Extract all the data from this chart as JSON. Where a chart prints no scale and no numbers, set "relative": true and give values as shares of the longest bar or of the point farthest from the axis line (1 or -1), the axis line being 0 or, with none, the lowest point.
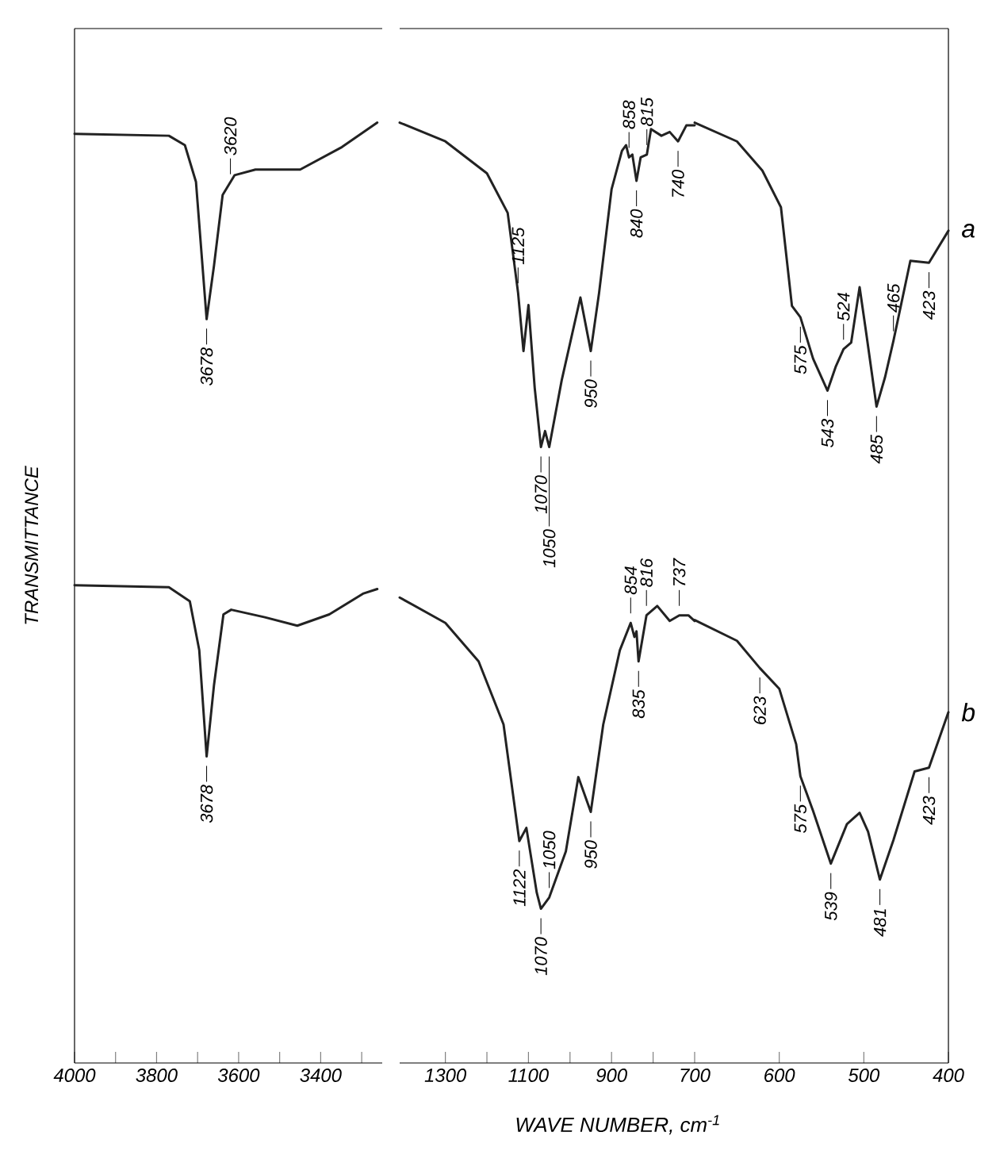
{
  "chart_data": [
    {
      "type": "line",
      "relative": true,
      "ylabel": "TRANSMITTANCE",
      "xlim": [
        4000,
        3250
      ],
      "xticks": [
        4000,
        {
          "value": 3900,
          "label": null
        },
        3800,
        {
          "value": 3700,
          "label": null
        },
        3600,
        {
          "value": 3500,
          "label": null
        },
        3400,
        {
          "value": 3300,
          "label": null
        }
      ],
      "series": [
        {
          "color": "#222222",
          "x": [
            4000,
            3770,
            3731,
            3704,
            3678,
            3660,
            3639,
            3610,
            3559,
            3450,
            3348,
            3262
          ],
          "values": [
            0.988,
            0.986,
            0.976,
            0.937,
            0.791,
            0.848,
            0.923,
            0.944,
            0.95,
            0.95,
            0.974,
            1.0
          ]
        },
        {
          "color": "#222222",
          "x": [
            4000,
            3770,
            3719,
            3696,
            3678,
            3660,
            3637,
            3618,
            3536,
            3457,
            3379,
            3297,
            3262
          ],
          "values": [
            0.508,
            0.506,
            0.491,
            0.439,
            0.326,
            0.402,
            0.477,
            0.482,
            0.474,
            0.465,
            0.477,
            0.499,
            0.504
          ]
        }
      ],
      "annotations": [
        {
          "text": "3678",
          "x": 3678,
          "y": 0.791
        },
        {
          "text": "3620",
          "x": 3620,
          "y": 0.935
        },
        {
          "text": "3678",
          "x": 3678,
          "y": 0.326
        }
      ]
    },
    {
      "type": "line",
      "relative": true,
      "xlabel": "WAVE NUMBER, cm$^{-1}$",
      "xlim": [
        1410,
        700
      ],
      "xticks": [
        1300,
        {
          "value": 1200,
          "label": null
        },
        1100,
        {
          "value": 1000,
          "label": null
        },
        900,
        {
          "value": 800,
          "label": null
        },
        700
      ],
      "series": [
        {
          "color": "#222222",
          "x": [
            1410,
            1300,
            1200,
            1150,
            1125,
            1112,
            1100,
            1085,
            1070,
            1060,
            1050,
            1020,
            975,
            950,
            930,
            900,
            875,
            865,
            858,
            850,
            840,
            830,
            815,
            805,
            780,
            760,
            740,
            720,
            700
          ],
          "values": [
            1.0,
            0.98,
            0.946,
            0.904,
            0.819,
            0.757,
            0.806,
            0.718,
            0.655,
            0.672,
            0.655,
            0.726,
            0.814,
            0.757,
            0.819,
            0.929,
            0.97,
            0.976,
            0.963,
            0.966,
            0.938,
            0.963,
            0.966,
            0.993,
            0.986,
            0.99,
            0.98,
            0.997,
            0.997
          ]
        },
        {
          "color": "#222222",
          "x": [
            1410,
            1300,
            1220,
            1160,
            1122,
            1105,
            1080,
            1070,
            1050,
            1010,
            980,
            950,
            920,
            880,
            854,
            845,
            840,
            835,
            816,
            790,
            760,
            737,
            715,
            700
          ],
          "values": [
            0.495,
            0.468,
            0.427,
            0.36,
            0.236,
            0.25,
            0.181,
            0.164,
            0.176,
            0.225,
            0.304,
            0.267,
            0.36,
            0.439,
            0.468,
            0.453,
            0.459,
            0.427,
            0.476,
            0.486,
            0.47,
            0.476,
            0.476,
            0.47
          ]
        }
      ],
      "annotations": [
        {
          "text": "1125",
          "x": 1125,
          "y": 0.819
        },
        {
          "text": "1070",
          "x": 1070,
          "y": 0.655
        },
        {
          "text": "1050",
          "x": 1050,
          "y": 0.655
        },
        {
          "text": "950",
          "x": 950,
          "y": 0.757
        },
        {
          "text": "858",
          "x": 858,
          "y": 0.963
        },
        {
          "text": "840",
          "x": 840,
          "y": 0.938
        },
        {
          "text": "815",
          "x": 815,
          "y": 0.966
        },
        {
          "text": "740",
          "x": 740,
          "y": 0.98
        },
        {
          "text": "1122",
          "x": 1122,
          "y": 0.236
        },
        {
          "text": "1070",
          "x": 1070,
          "y": 0.164
        },
        {
          "text": "1050",
          "x": 1050,
          "y": 0.176
        },
        {
          "text": "950",
          "x": 950,
          "y": 0.267
        },
        {
          "text": "854",
          "x": 854,
          "y": 0.468
        },
        {
          "text": "835",
          "x": 835,
          "y": 0.427
        },
        {
          "text": "816",
          "x": 816,
          "y": 0.476
        },
        {
          "text": "737",
          "x": 737,
          "y": 0.476
        }
      ]
    },
    {
      "type": "line",
      "relative": true,
      "xlim": [
        700,
        400
      ],
      "xticks": [
        600,
        500,
        400
      ],
      "series": [
        {
          "name": "a",
          "color": "#222222",
          "x": [
            700,
            650,
            620,
            598,
            585,
            575,
            560,
            543,
            533,
            524,
            515,
            505,
            497,
            485,
            475,
            465,
            445,
            423,
            400
          ],
          "values": [
            1.0,
            0.98,
            0.949,
            0.91,
            0.805,
            0.793,
            0.749,
            0.715,
            0.741,
            0.759,
            0.766,
            0.825,
            0.775,
            0.698,
            0.729,
            0.768,
            0.853,
            0.851,
            0.885
          ]
        },
        {
          "name": "b",
          "color": "#222222",
          "x": [
            700,
            650,
            623,
            600,
            580,
            575,
            560,
            539,
            520,
            505,
            495,
            481,
            465,
            440,
            423,
            400
          ],
          "values": [
            0.471,
            0.449,
            0.42,
            0.398,
            0.339,
            0.305,
            0.268,
            0.212,
            0.254,
            0.266,
            0.246,
            0.195,
            0.237,
            0.31,
            0.314,
            0.373
          ]
        }
      ],
      "annotations": [
        {
          "text": "575",
          "x": 575,
          "y": 0.793
        },
        {
          "text": "543",
          "x": 543,
          "y": 0.715
        },
        {
          "text": "524",
          "x": 524,
          "y": 0.759
        },
        {
          "text": "485",
          "x": 485,
          "y": 0.698
        },
        {
          "text": "465",
          "x": 465,
          "y": 0.768
        },
        {
          "text": "423",
          "x": 423,
          "y": 0.851
        },
        {
          "text": "623",
          "x": 623,
          "y": 0.42
        },
        {
          "text": "575",
          "x": 575,
          "y": 0.305
        },
        {
          "text": "539",
          "x": 539,
          "y": 0.212
        },
        {
          "text": "481",
          "x": 481,
          "y": 0.195
        },
        {
          "text": "423",
          "x": 423,
          "y": 0.314
        }
      ]
    }
  ]
}
